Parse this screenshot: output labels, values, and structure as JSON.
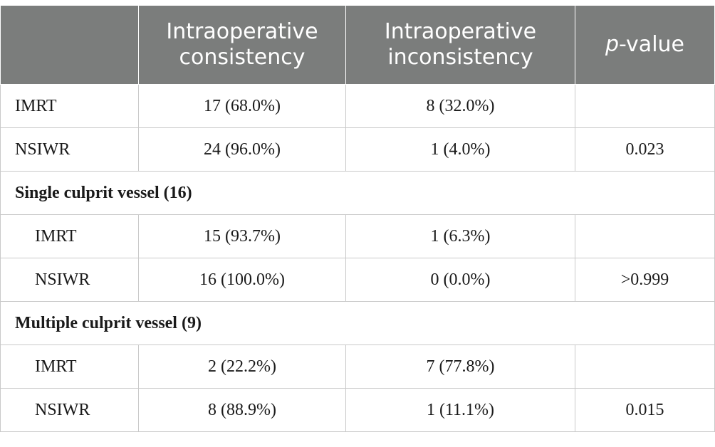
{
  "table": {
    "header": {
      "col1_line1": "Intraoperative",
      "col1_line2": "consistency",
      "col2_line1": "Intraoperative",
      "col2_line2": "inconsistency",
      "col3_italic": "p",
      "col3_rest": "-value"
    },
    "overall": [
      {
        "label": "IMRT",
        "consistency": "17 (68.0%)",
        "inconsistency": "8 (32.0%)",
        "p": ""
      },
      {
        "label": "NSIWR",
        "consistency": "24 (96.0%)",
        "inconsistency": "1 (4.0%)",
        "p": "0.023"
      }
    ],
    "single": {
      "title": "Single culprit vessel (16)",
      "rows": [
        {
          "label": "IMRT",
          "consistency": "15 (93.7%)",
          "inconsistency": "1 (6.3%)",
          "p": ""
        },
        {
          "label": "NSIWR",
          "consistency": "16 (100.0%)",
          "inconsistency": "0 (0.0%)",
          "p": ">0.999"
        }
      ]
    },
    "multiple": {
      "title": "Multiple culprit vessel (9)",
      "rows": [
        {
          "label": "IMRT",
          "consistency": "2 (22.2%)",
          "inconsistency": "7 (77.8%)",
          "p": ""
        },
        {
          "label": "NSIWR",
          "consistency": "8 (88.9%)",
          "inconsistency": "1 (11.1%)",
          "p": "0.015"
        }
      ]
    }
  }
}
